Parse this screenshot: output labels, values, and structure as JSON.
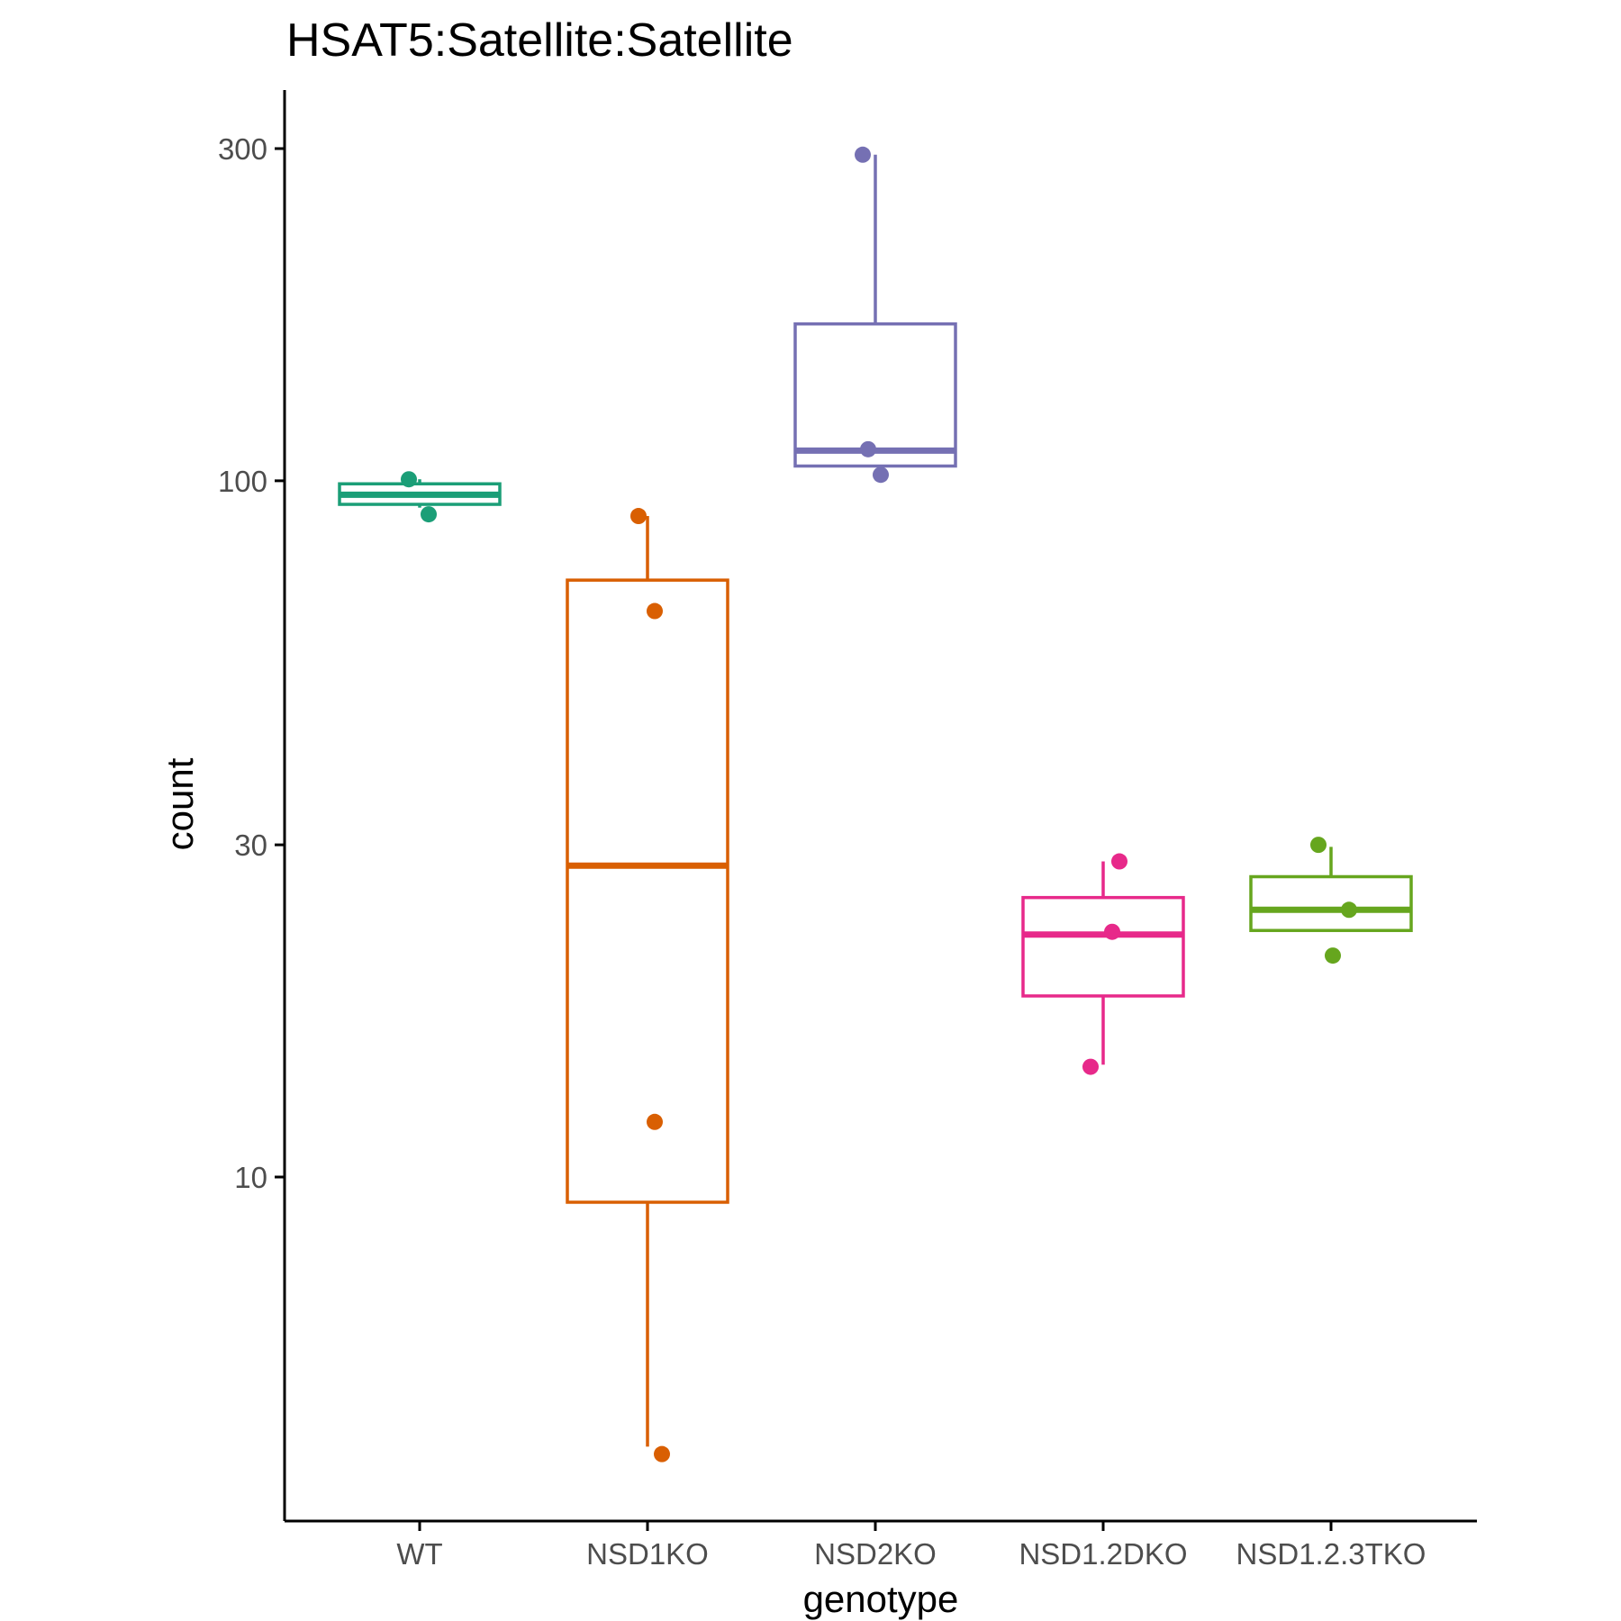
{
  "chart_data": {
    "type": "box",
    "title": "HSAT5:Satellite:Satellite",
    "xlabel": "genotype",
    "ylabel": "count",
    "y_scale": "log10",
    "ylim": [
      3.9,
      360
    ],
    "y_ticks": [
      {
        "value": 10,
        "label": "10"
      },
      {
        "value": 30,
        "label": "30"
      },
      {
        "value": 100,
        "label": "100"
      },
      {
        "value": 300,
        "label": "300"
      }
    ],
    "grid": false,
    "legend": "none",
    "categories": [
      "WT",
      "NSD1KO",
      "NSD2KO",
      "NSD1.2DKO",
      "NSD1.2.3TKO"
    ],
    "groups": [
      {
        "name": "WT",
        "color": "#1b9e77",
        "whisker_low": 91.5,
        "q1": 92.5,
        "median": 95.5,
        "q3": 99.0,
        "whisker_high": 100.5,
        "points": [
          100.5,
          89.5
        ]
      },
      {
        "name": "NSD1KO",
        "color": "#d95f02",
        "whisker_low": 4.1,
        "q1": 9.2,
        "median": 28.0,
        "q3": 72.0,
        "whisker_high": 89.0,
        "points": [
          89.0,
          65.0,
          12.0,
          4.0
        ]
      },
      {
        "name": "NSD2KO",
        "color": "#7570b3",
        "whisker_low": 105.0,
        "q1": 105.0,
        "median": 110.5,
        "q3": 168.0,
        "whisker_high": 294.0,
        "points": [
          294.0,
          111.0,
          102.0
        ]
      },
      {
        "name": "NSD1.2DKO",
        "color": "#e7298a",
        "whisker_low": 14.5,
        "q1": 18.2,
        "median": 22.3,
        "q3": 25.2,
        "whisker_high": 28.4,
        "points": [
          28.4,
          22.5,
          14.4
        ]
      },
      {
        "name": "NSD1.2.3TKO",
        "color": "#66a61e",
        "whisker_low": 22.6,
        "q1": 22.6,
        "median": 24.2,
        "q3": 27.0,
        "whisker_high": 29.8,
        "points": [
          30.0,
          24.2,
          20.8
        ]
      }
    ]
  }
}
